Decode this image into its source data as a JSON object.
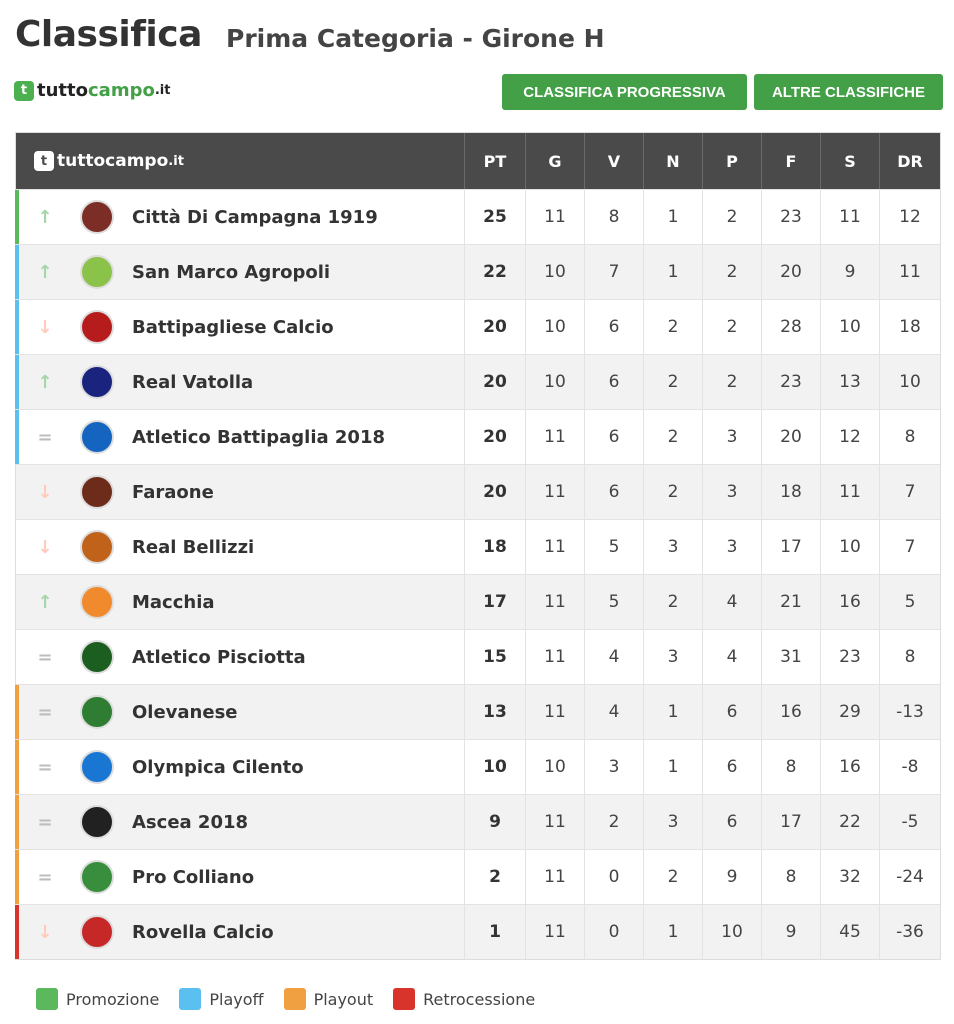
{
  "header": {
    "title": "Classifica",
    "subtitle": "Prima Categoria - Girone H"
  },
  "brand": {
    "tutto": "tutto",
    "campo": "campo",
    "it": ".it"
  },
  "buttons": {
    "progressiva": "CLASSIFICA PROGRESSIVA",
    "altre": "ALTRE CLASSIFICHE"
  },
  "columns": [
    "PT",
    "G",
    "V",
    "N",
    "P",
    "F",
    "S",
    "DR"
  ],
  "zones": {
    "promozione": {
      "label": "Promozione",
      "color": "#5cb85c"
    },
    "playoff": {
      "label": "Playoff",
      "color": "#5bc0f0"
    },
    "playout": {
      "label": "Playout",
      "color": "#f0a040"
    },
    "retrocessione": {
      "label": "Retrocessione",
      "color": "#d9342b"
    }
  },
  "rows": [
    {
      "trend": "up",
      "team": "Città Di Campagna 1919",
      "crest": "#7b2d26",
      "zone": "promozione",
      "pt": "25",
      "g": "11",
      "v": "8",
      "n": "1",
      "p": "2",
      "f": "23",
      "s": "11",
      "dr": "12"
    },
    {
      "trend": "up",
      "team": "San Marco Agropoli",
      "crest": "#8bc34a",
      "zone": "playoff",
      "pt": "22",
      "g": "10",
      "v": "7",
      "n": "1",
      "p": "2",
      "f": "20",
      "s": "9",
      "dr": "11"
    },
    {
      "trend": "down",
      "team": "Battipagliese Calcio",
      "crest": "#b71c1c",
      "zone": "playoff",
      "pt": "20",
      "g": "10",
      "v": "6",
      "n": "2",
      "p": "2",
      "f": "28",
      "s": "10",
      "dr": "18"
    },
    {
      "trend": "up",
      "team": "Real Vatolla",
      "crest": "#1a237e",
      "zone": "playoff",
      "pt": "20",
      "g": "10",
      "v": "6",
      "n": "2",
      "p": "2",
      "f": "23",
      "s": "13",
      "dr": "10"
    },
    {
      "trend": "eq",
      "team": "Atletico Battipaglia 2018",
      "crest": "#1565c0",
      "zone": "playoff",
      "pt": "20",
      "g": "11",
      "v": "6",
      "n": "2",
      "p": "3",
      "f": "20",
      "s": "12",
      "dr": "8"
    },
    {
      "trend": "down",
      "team": "Faraone",
      "crest": "#6d2c1a",
      "zone": "",
      "pt": "20",
      "g": "11",
      "v": "6",
      "n": "2",
      "p": "3",
      "f": "18",
      "s": "11",
      "dr": "7"
    },
    {
      "trend": "down",
      "team": "Real Bellizzi",
      "crest": "#c0621a",
      "zone": "",
      "pt": "18",
      "g": "11",
      "v": "5",
      "n": "3",
      "p": "3",
      "f": "17",
      "s": "10",
      "dr": "7"
    },
    {
      "trend": "up",
      "team": "Macchia",
      "crest": "#f08a2c",
      "zone": "",
      "pt": "17",
      "g": "11",
      "v": "5",
      "n": "2",
      "p": "4",
      "f": "21",
      "s": "16",
      "dr": "5"
    },
    {
      "trend": "eq",
      "team": "Atletico Pisciotta",
      "crest": "#1b5e20",
      "zone": "",
      "pt": "15",
      "g": "11",
      "v": "4",
      "n": "3",
      "p": "4",
      "f": "31",
      "s": "23",
      "dr": "8"
    },
    {
      "trend": "eq",
      "team": "Olevanese",
      "crest": "#2e7d32",
      "zone": "playout",
      "pt": "13",
      "g": "11",
      "v": "4",
      "n": "1",
      "p": "6",
      "f": "16",
      "s": "29",
      "dr": "-13"
    },
    {
      "trend": "eq",
      "team": "Olympica Cilento",
      "crest": "#1976d2",
      "zone": "playout",
      "pt": "10",
      "g": "10",
      "v": "3",
      "n": "1",
      "p": "6",
      "f": "8",
      "s": "16",
      "dr": "-8"
    },
    {
      "trend": "eq",
      "team": "Ascea 2018",
      "crest": "#212121",
      "zone": "playout",
      "pt": "9",
      "g": "11",
      "v": "2",
      "n": "3",
      "p": "6",
      "f": "17",
      "s": "22",
      "dr": "-5"
    },
    {
      "trend": "eq",
      "team": "Pro Colliano",
      "crest": "#388e3c",
      "zone": "playout",
      "pt": "2",
      "g": "11",
      "v": "0",
      "n": "2",
      "p": "9",
      "f": "8",
      "s": "32",
      "dr": "-24"
    },
    {
      "trend": "down",
      "team": "Rovella Calcio",
      "crest": "#c62828",
      "zone": "retrocessione",
      "pt": "1",
      "g": "11",
      "v": "0",
      "n": "1",
      "p": "10",
      "f": "9",
      "s": "45",
      "dr": "-36"
    }
  ],
  "legend": [
    "promozione",
    "playoff",
    "playout",
    "retrocessione"
  ]
}
